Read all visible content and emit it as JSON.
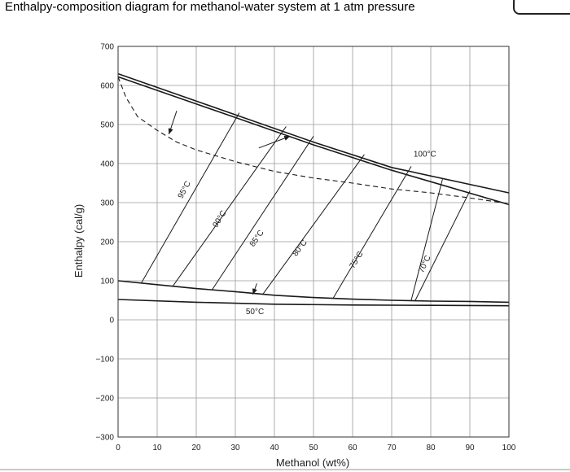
{
  "title": "Enthalpy-composition diagram for methanol-water system at 1 atm pressure",
  "chart_data": {
    "type": "line",
    "xlabel": "Methanol (wt%)",
    "ylabel": "Enthalpy (cal/g)",
    "xlim": [
      0,
      100
    ],
    "ylim": [
      -300,
      700
    ],
    "xticks": [
      0,
      10,
      20,
      30,
      40,
      50,
      60,
      70,
      80,
      90,
      100
    ],
    "yticks": [
      -300,
      -200,
      -100,
      0,
      100,
      200,
      300,
      400,
      500,
      600,
      700
    ],
    "xtick_labels": [
      "0",
      "10",
      "20",
      "30",
      "40",
      "50",
      "60",
      "70",
      "80",
      "90",
      "100"
    ],
    "ytick_labels": [
      "−300",
      "−200",
      "−100",
      "0",
      "100",
      "200",
      "300",
      "400",
      "500",
      "600",
      "700"
    ],
    "grid": true,
    "series": [
      {
        "style": "solid",
        "x": [
          0,
          30,
          50,
          70,
          100
        ],
        "y": [
          630,
          525,
          455,
          390,
          325
        ]
      },
      {
        "style": "solid",
        "x": [
          0,
          30,
          50,
          70,
          100
        ],
        "y": [
          622,
          518,
          448,
          383,
          295
        ]
      },
      {
        "style": "dashed",
        "x": [
          0,
          2,
          5,
          10,
          15,
          20,
          30,
          40,
          50,
          60,
          70,
          80,
          90,
          100
        ],
        "y": [
          622,
          570,
          520,
          485,
          455,
          435,
          405,
          380,
          363,
          350,
          335,
          325,
          312,
          297
        ]
      },
      {
        "style": "solid",
        "x": [
          0,
          10,
          20,
          30,
          40,
          50,
          60,
          70,
          80,
          90,
          100
        ],
        "y": [
          100,
          90,
          80,
          72,
          63,
          57,
          53,
          50,
          48,
          47,
          45
        ]
      },
      {
        "style": "solid",
        "x": [
          0,
          20,
          40,
          60,
          80,
          100
        ],
        "y": [
          52,
          45,
          40,
          38,
          37,
          36
        ]
      }
    ],
    "tie_lines": [
      {
        "x": [
          6,
          31
        ],
        "y": [
          95,
          530
        ]
      },
      {
        "x": [
          14,
          43
        ],
        "y": [
          86,
          495
        ]
      },
      {
        "x": [
          24,
          50
        ],
        "y": [
          76,
          470
        ]
      },
      {
        "x": [
          37,
          63
        ],
        "y": [
          65,
          423
        ]
      },
      {
        "x": [
          55,
          75
        ],
        "y": [
          55,
          393
        ]
      },
      {
        "x": [
          75,
          83
        ],
        "y": [
          50,
          360
        ]
      },
      {
        "x": [
          76,
          90
        ],
        "y": [
          49,
          330
        ]
      }
    ],
    "annotations": [
      {
        "text": "95°C",
        "x": 17.5,
        "y": 330,
        "rotation": -62
      },
      {
        "text": "90°C",
        "x": 26.5,
        "y": 255,
        "rotation": -58
      },
      {
        "text": "85°C",
        "x": 36,
        "y": 205,
        "rotation": -55
      },
      {
        "text": "80°C",
        "x": 47,
        "y": 180,
        "rotation": -52
      },
      {
        "text": "75°C",
        "x": 61.5,
        "y": 150,
        "rotation": -58
      },
      {
        "text": "70°C",
        "x": 79,
        "y": 140,
        "rotation": -65
      },
      {
        "text": "100°C",
        "x": 78.5,
        "y": 418,
        "rotation": 0
      },
      {
        "text": "50°C",
        "x": 35,
        "y": 15,
        "rotation": 0
      }
    ],
    "arrows": [
      {
        "x": [
          15,
          13
        ],
        "y": [
          535,
          475
        ]
      },
      {
        "x": [
          36,
          44
        ],
        "y": [
          440,
          470
        ]
      },
      {
        "x": [
          35.5,
          34.5
        ],
        "y": [
          93,
          65
        ]
      }
    ]
  }
}
